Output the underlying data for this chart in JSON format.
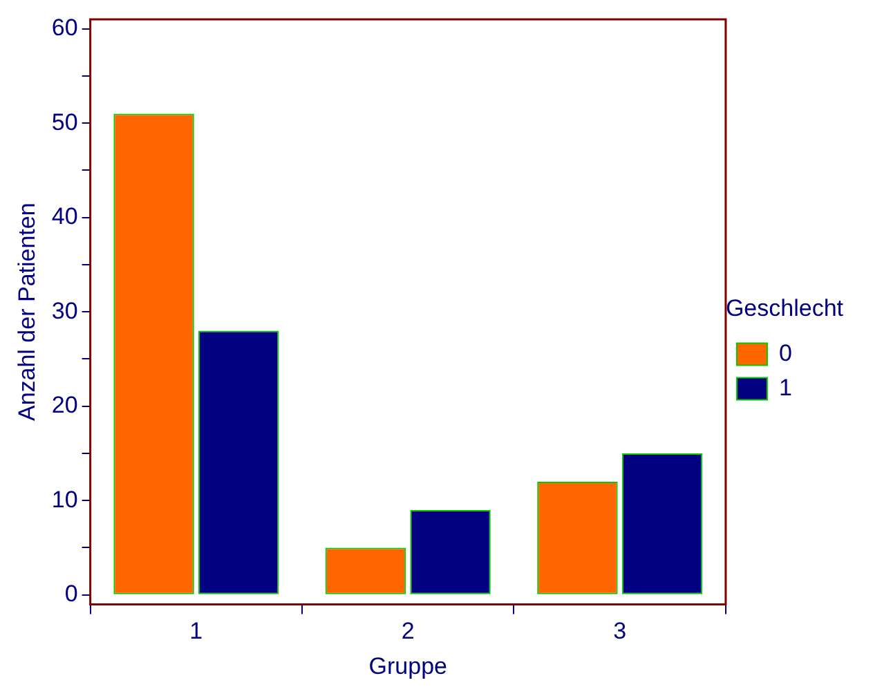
{
  "chart_data": {
    "type": "bar",
    "xlabel": "Gruppe",
    "ylabel": "Anzahl der Patienten",
    "legend_title": "Geschlecht",
    "categories": [
      "1",
      "2",
      "3"
    ],
    "series": [
      {
        "name": "0",
        "color": "#ff6600",
        "values": [
          51,
          5,
          12
        ]
      },
      {
        "name": "1",
        "color": "#000080",
        "values": [
          28,
          9,
          15
        ]
      }
    ],
    "ylim": [
      -1,
      61
    ],
    "yticks": [
      0,
      {
        "value": 5,
        "label": null
      },
      10,
      {
        "value": 15,
        "label": null
      },
      20,
      {
        "value": 25,
        "label": null
      },
      30,
      {
        "value": 35,
        "label": null
      },
      40,
      {
        "value": 45,
        "label": null
      },
      50,
      {
        "value": 55,
        "label": null
      },
      60
    ],
    "grid": false,
    "legend": "right"
  }
}
